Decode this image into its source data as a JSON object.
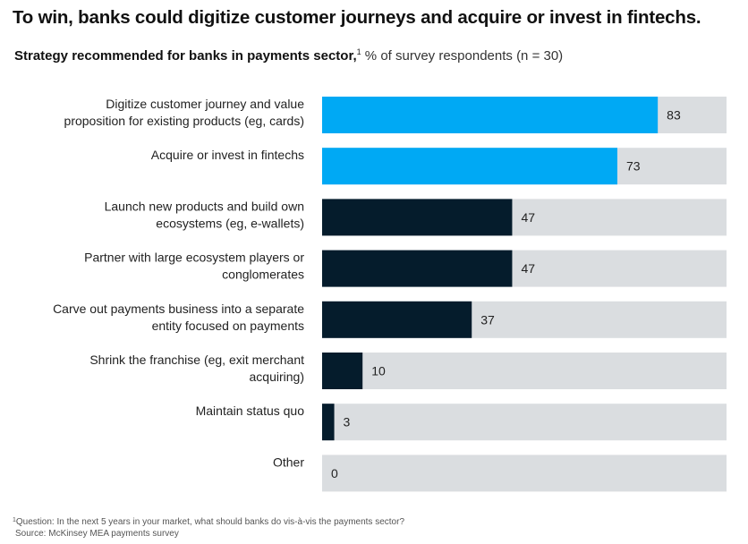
{
  "chart_data": {
    "type": "bar",
    "orientation": "horizontal",
    "title": "To win, banks could digitize customer journeys and acquire or invest in fintechs.",
    "subtitle_bold": "Strategy recommended for banks in payments sector,",
    "subtitle_sup": "1",
    "subtitle_rest": " % of survey respondents (n = 30)",
    "xlim": [
      0,
      100
    ],
    "grid": false,
    "legend": "none",
    "colors": {
      "highlight": "#00A9F4",
      "default": "#051C2C",
      "track": "#DADDE0"
    },
    "categories": [
      [
        "Digitize customer journey and value",
        "proposition for existing products (eg, cards)"
      ],
      [
        "Acquire or invest in fintechs"
      ],
      [
        "Launch new products and build own",
        "ecosystems (eg, e-wallets)"
      ],
      [
        "Partner with large ecosystem players or",
        "conglomerates"
      ],
      [
        "Carve out payments business into a separate",
        "entity focused on payments"
      ],
      [
        "Shrink the franchise (eg, exit merchant",
        "acquiring)"
      ],
      [
        "Maintain status quo"
      ],
      [
        "Other"
      ]
    ],
    "values": [
      83,
      73,
      47,
      47,
      37,
      10,
      3,
      0
    ],
    "highlighted": [
      true,
      true,
      false,
      false,
      false,
      false,
      false,
      false
    ]
  },
  "footnote": {
    "sup": "1",
    "question": "Question: In the next 5 years in your market, what should banks do vis-à-vis the payments sector?",
    "source": "Source: McKinsey MEA payments survey"
  }
}
